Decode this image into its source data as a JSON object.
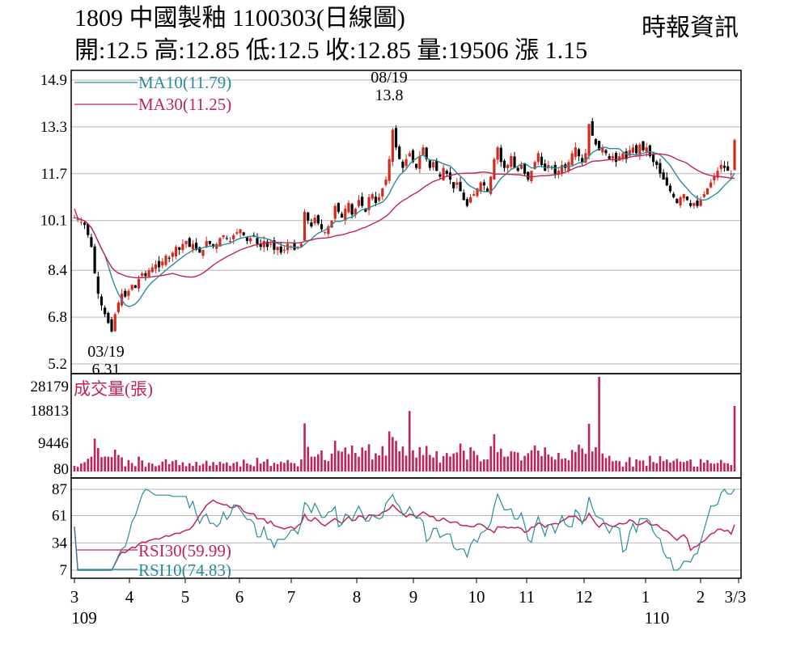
{
  "header": {
    "title": "1809  中國製釉 1100303(日線圖)",
    "quote": "開:12.5 高:12.85 低:12.5 收:12.85 量:19506 漲 1.15",
    "source": "時報資訊"
  },
  "chart_data": [
    {
      "type": "candlestick",
      "panel": "price",
      "ylim": [
        5.2,
        14.9
      ],
      "yticks": [
        "14.9",
        "13.3",
        "11.7",
        "10.1",
        "8.4",
        "6.8",
        "5.2"
      ],
      "grid": true,
      "legend": [
        {
          "label": "MA10(11.79)",
          "color": "#2a8c9a"
        },
        {
          "label": "MA30(11.25)",
          "color": "#c0245a"
        }
      ],
      "annotations": [
        {
          "date": "08/19",
          "value": "13.8"
        },
        {
          "date": "03/19",
          "value": "6.31"
        }
      ],
      "up_color": "#d42a1e",
      "down_color": "#000000",
      "close_approx": [
        10.2,
        10.15,
        10.05,
        9.95,
        9.6,
        9.2,
        8.3,
        7.6,
        7.2,
        6.9,
        6.6,
        6.31,
        6.9,
        7.3,
        7.6,
        7.5,
        7.7,
        7.9,
        7.8,
        8.1,
        8.3,
        8.2,
        8.4,
        8.5,
        8.6,
        8.5,
        8.7,
        8.9,
        8.8,
        9.0,
        9.2,
        9.1,
        9.3,
        9.4,
        9.2,
        9.3,
        9.1,
        9.0,
        9.1,
        9.4,
        9.3,
        9.2,
        9.3,
        9.5,
        9.6,
        9.5,
        9.4,
        9.6,
        9.7,
        9.8,
        9.6,
        9.4,
        9.5,
        9.6,
        9.3,
        9.2,
        9.4,
        9.2,
        9.3,
        9.1,
        9.2,
        9.0,
        9.1,
        9.3,
        9.2,
        9.1,
        9.2,
        9.3,
        10.4,
        10.1,
        9.9,
        10.2,
        10.0,
        9.8,
        9.7,
        9.9,
        10.1,
        10.6,
        10.4,
        10.2,
        10.5,
        10.7,
        10.3,
        10.5,
        10.8,
        10.6,
        10.4,
        10.9,
        11.0,
        10.7,
        10.9,
        11.2,
        11.5,
        12.2,
        13.2,
        12.6,
        12.2,
        11.9,
        12.2,
        12.4,
        12.1,
        11.9,
        12.3,
        12.6,
        12.2,
        11.9,
        12.1,
        11.8,
        11.6,
        11.9,
        11.7,
        11.5,
        11.2,
        11.4,
        11.1,
        10.8,
        10.6,
        10.9,
        11.0,
        11.2,
        11.4,
        11.3,
        11.1,
        11.6,
        12.2,
        12.6,
        12.1,
        11.9,
        12.0,
        12.3,
        11.9,
        11.8,
        12.0,
        11.7,
        11.5,
        11.8,
        12.1,
        12.4,
        12.0,
        11.8,
        12.0,
        11.9,
        11.7,
        11.8,
        12.0,
        11.9,
        12.1,
        12.4,
        12.6,
        12.3,
        12.1,
        12.4,
        13.4,
        13.0,
        12.7,
        12.5,
        12.6,
        12.4,
        12.2,
        12.3,
        12.1,
        12.3,
        12.4,
        12.2,
        12.5,
        12.6,
        12.4,
        12.7,
        12.5,
        12.6,
        12.3,
        12.1,
        12.0,
        11.7,
        11.5,
        11.3,
        11.1,
        10.9,
        10.7,
        10.9,
        11.0,
        10.8,
        10.6,
        10.7,
        10.6,
        10.8,
        11.0,
        11.2,
        11.4,
        11.6,
        11.8,
        12.0,
        11.9,
        11.8,
        11.7,
        12.85
      ]
    },
    {
      "type": "bar",
      "panel": "volume",
      "title": "成交量(張)",
      "yticks": [
        "28179",
        "18813",
        "9446",
        "80"
      ],
      "ylim": [
        80,
        28179
      ],
      "color": "#c0245a"
    },
    {
      "type": "line",
      "panel": "rsi",
      "yticks": [
        "87",
        "61",
        "34",
        "7"
      ],
      "legend": [
        {
          "label": "RSI30(59.99)",
          "color": "#c0245a"
        },
        {
          "label": "RSI10(74.83)",
          "color": "#2a8c9a"
        }
      ]
    }
  ],
  "xaxis": {
    "months": [
      "3",
      "4",
      "5",
      "6",
      "7",
      "8",
      "9",
      "10",
      "11",
      "12",
      "1",
      "2",
      "3/3"
    ],
    "years": [
      "109",
      "110"
    ]
  }
}
